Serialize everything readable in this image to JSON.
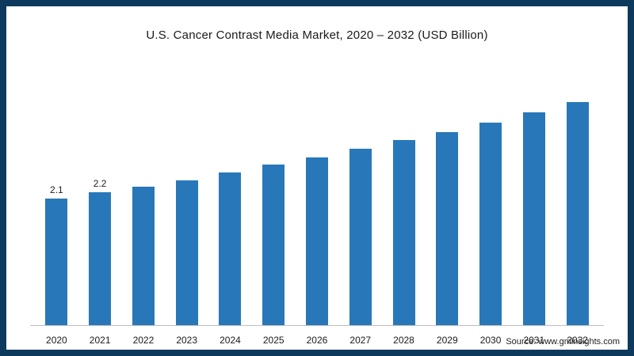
{
  "title": "U.S. Cancer Contrast Media Market, 2020 – 2032 (USD Billion)",
  "source": "Source: www.gminsights.com",
  "colors": {
    "frame": "#0d3a5c",
    "bar": "#2878b9",
    "axis_line": "#bfbfbf"
  },
  "chart_data": {
    "type": "bar",
    "title": "U.S. Cancer Contrast Media Market, 2020 – 2032 (USD Billion)",
    "categories": [
      "2020",
      "2021",
      "2022",
      "2023",
      "2024",
      "2025",
      "2026",
      "2027",
      "2028",
      "2029",
      "2030",
      "2031",
      "2032"
    ],
    "values": [
      2.1,
      2.2,
      2.3,
      2.4,
      2.53,
      2.66,
      2.78,
      2.92,
      3.06,
      3.19,
      3.35,
      3.52,
      3.69
    ],
    "data_labels": [
      "2.1",
      "2.2",
      "",
      "",
      "",
      "",
      "",
      "",
      "",
      "",
      "",
      "",
      ""
    ],
    "xlabel": "",
    "ylabel": "",
    "ylim": [
      0,
      3.8
    ],
    "grid": false,
    "legend": false,
    "source": "Source: www.gminsights.com"
  }
}
